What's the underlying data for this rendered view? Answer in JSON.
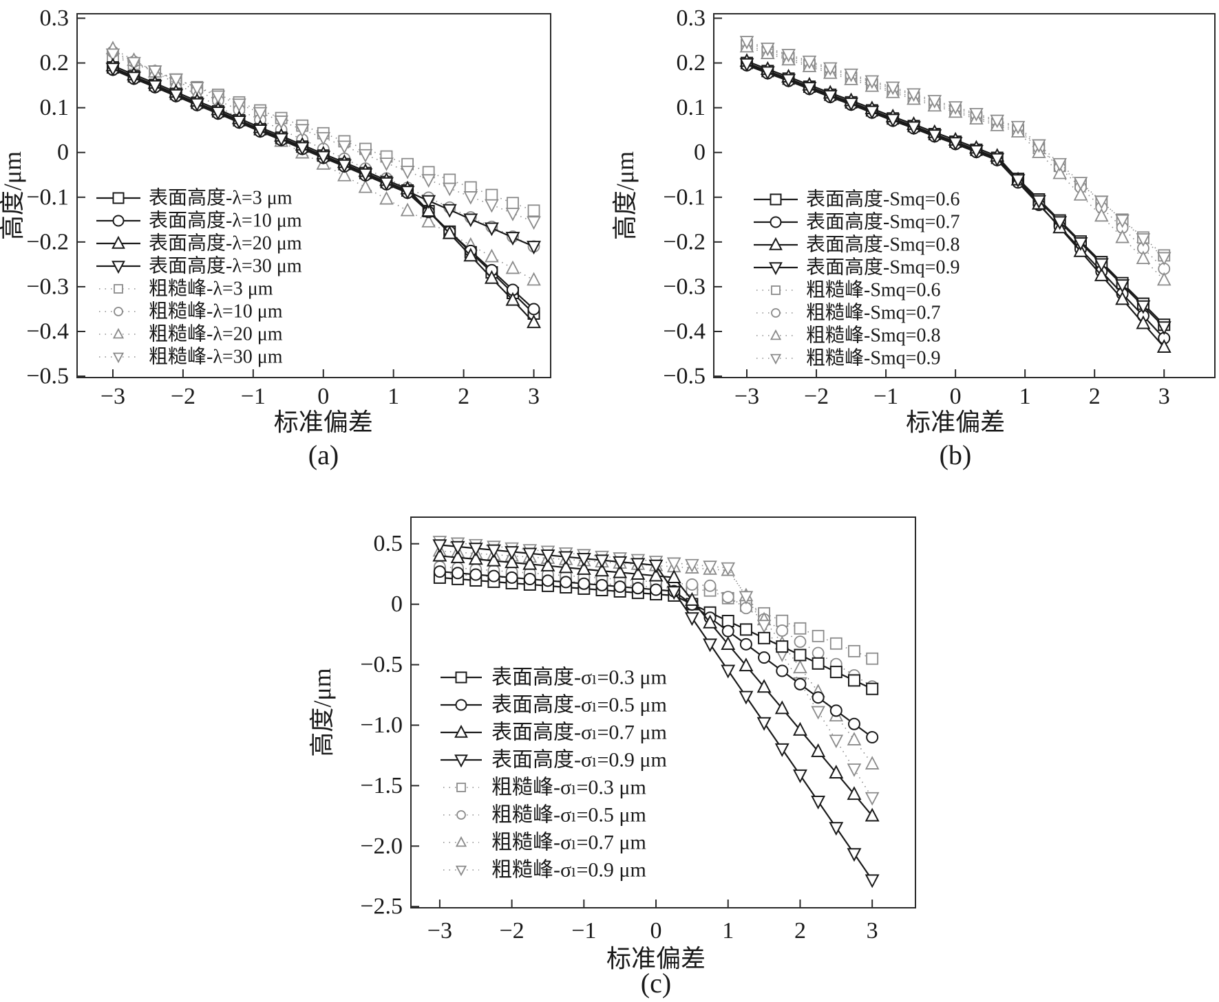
{
  "figure": {
    "background": "#ffffff"
  },
  "chart_data": [
    {
      "id": "a",
      "type": "line",
      "caption": "(a)",
      "xlabel": "标准偏差",
      "ylabel": "高度/μm",
      "xlim": [
        -3,
        3
      ],
      "ylim": [
        -0.5,
        0.3
      ],
      "grid": false,
      "legend_position": "inside-left",
      "x_ticks": [
        -3,
        -2,
        -1,
        0,
        1,
        2,
        3
      ],
      "x_tick_labels": [
        "−3",
        "−2",
        "−1",
        "0",
        "1",
        "2",
        "3"
      ],
      "y_ticks": [
        0.3,
        0.2,
        0.1,
        0,
        -0.1,
        -0.2,
        -0.3,
        -0.4,
        -0.5
      ],
      "y_tick_labels": [
        "0.3",
        "0.2",
        "0.1",
        "0",
        "−0.1",
        "−0.2",
        "−0.3",
        "−0.4",
        "−0.5"
      ],
      "x": [
        -3,
        -2.7,
        -2.4,
        -2.1,
        -1.8,
        -1.5,
        -1.2,
        -0.9,
        -0.6,
        -0.3,
        0,
        0.3,
        0.6,
        0.9,
        1.2,
        1.5,
        1.8,
        2.1,
        2.4,
        2.7,
        3
      ],
      "series": [
        {
          "name": "表面高度-λ=3 μm",
          "group": "表面高度",
          "line": "solid",
          "marker": "square",
          "color": "#1a1a1a",
          "y": [
            0.19,
            0.17,
            0.151,
            0.131,
            0.111,
            0.092,
            0.072,
            0.052,
            0.033,
            0.013,
            -0.007,
            -0.026,
            -0.046,
            -0.066,
            -0.085,
            -0.131,
            -0.177,
            -0.223,
            -0.268,
            -0.314,
            -0.36
          ]
        },
        {
          "name": "表面高度-λ=10 μm",
          "group": "表面高度",
          "line": "solid",
          "marker": "circle",
          "color": "#1a1a1a",
          "y": [
            0.185,
            0.165,
            0.146,
            0.126,
            0.106,
            0.087,
            0.067,
            0.047,
            0.028,
            0.008,
            -0.012,
            -0.031,
            -0.051,
            -0.071,
            -0.09,
            -0.133,
            -0.177,
            -0.22,
            -0.263,
            -0.307,
            -0.35
          ]
        },
        {
          "name": "表面高度-λ=20 μm",
          "group": "表面高度",
          "line": "solid",
          "marker": "triangle-up",
          "color": "#1a1a1a",
          "y": [
            0.194,
            0.174,
            0.155,
            0.135,
            0.115,
            0.096,
            0.076,
            0.056,
            0.037,
            0.017,
            -0.003,
            -0.022,
            -0.042,
            -0.062,
            -0.081,
            -0.131,
            -0.181,
            -0.231,
            -0.281,
            -0.33,
            -0.38
          ]
        },
        {
          "name": "表面高度-λ=30 μm",
          "group": "表面高度",
          "line": "solid",
          "marker": "triangle-down",
          "color": "#1a1a1a",
          "y": [
            0.188,
            0.168,
            0.149,
            0.129,
            0.109,
            0.09,
            0.07,
            0.05,
            0.031,
            0.011,
            -0.009,
            -0.028,
            -0.048,
            -0.068,
            -0.087,
            -0.108,
            -0.128,
            -0.149,
            -0.169,
            -0.19,
            -0.21
          ]
        },
        {
          "name": "粗糙峰-λ=3 μm",
          "group": "粗糙峰",
          "line": "dotted",
          "marker": "square",
          "color": "#8a8a8a",
          "y": [
            0.215,
            0.198,
            0.181,
            0.163,
            0.146,
            0.129,
            0.112,
            0.094,
            0.077,
            0.06,
            0.043,
            0.025,
            0.008,
            -0.009,
            -0.026,
            -0.044,
            -0.061,
            -0.078,
            -0.095,
            -0.113,
            -0.13
          ]
        },
        {
          "name": "粗糙峰-λ=10 μm",
          "group": "粗糙峰",
          "line": "dotted",
          "marker": "circle",
          "color": "#8a8a8a",
          "y": [
            0.225,
            0.203,
            0.182,
            0.16,
            0.138,
            0.116,
            0.095,
            0.073,
            0.051,
            0.029,
            0.008,
            -0.014,
            -0.036,
            -0.058,
            -0.079,
            -0.101,
            -0.123,
            -0.145,
            -0.166,
            -0.188,
            -0.21
          ]
        },
        {
          "name": "粗糙峰-λ=20 μm",
          "group": "粗糙峰",
          "line": "dotted",
          "marker": "triangle-up",
          "color": "#8a8a8a",
          "y": [
            0.232,
            0.206,
            0.18,
            0.154,
            0.129,
            0.103,
            0.077,
            0.051,
            0.025,
            -0.001,
            -0.026,
            -0.052,
            -0.078,
            -0.104,
            -0.13,
            -0.155,
            -0.181,
            -0.207,
            -0.233,
            -0.259,
            -0.285
          ]
        },
        {
          "name": "粗糙峰-λ=30 μm",
          "group": "粗糙峰",
          "line": "dotted",
          "marker": "triangle-down",
          "color": "#8a8a8a",
          "y": [
            0.22,
            0.201,
            0.182,
            0.164,
            0.145,
            0.126,
            0.108,
            0.089,
            0.07,
            0.051,
            0.033,
            0.014,
            -0.005,
            -0.024,
            -0.042,
            -0.061,
            -0.08,
            -0.099,
            -0.117,
            -0.136,
            -0.155
          ]
        }
      ]
    },
    {
      "id": "b",
      "type": "line",
      "caption": "(b)",
      "xlabel": "标准偏差",
      "ylabel": "高度/μm",
      "xlim": [
        -3,
        3
      ],
      "ylim": [
        -0.5,
        0.3
      ],
      "grid": false,
      "legend_position": "inside-left",
      "x_ticks": [
        -3,
        -2,
        -1,
        0,
        1,
        2,
        3
      ],
      "x_tick_labels": [
        "−3",
        "−2",
        "−1",
        "0",
        "1",
        "2",
        "3"
      ],
      "y_ticks": [
        0.3,
        0.2,
        0.1,
        0,
        -0.1,
        -0.2,
        -0.3,
        -0.4,
        -0.5
      ],
      "y_tick_labels": [
        "0.3",
        "0.2",
        "0.1",
        "0",
        "−0.1",
        "−0.2",
        "−0.3",
        "−0.4",
        "−0.5"
      ],
      "x": [
        -3,
        -2.7,
        -2.4,
        -2.1,
        -1.8,
        -1.5,
        -1.2,
        -0.9,
        -0.6,
        -0.3,
        0,
        0.3,
        0.6,
        0.9,
        1.2,
        1.5,
        1.8,
        2.1,
        2.4,
        2.7,
        3
      ],
      "series": [
        {
          "name": "表面高度-Smq=0.6",
          "group": "表面高度",
          "line": "solid",
          "marker": "square",
          "color": "#1a1a1a",
          "y": [
            0.2,
            0.182,
            0.165,
            0.147,
            0.129,
            0.112,
            0.094,
            0.076,
            0.059,
            0.041,
            0.024,
            0.006,
            -0.012,
            -0.059,
            -0.105,
            -0.152,
            -0.199,
            -0.245,
            -0.292,
            -0.338,
            -0.385
          ]
        },
        {
          "name": "表面高度-Smq=0.7",
          "group": "表面高度",
          "line": "solid",
          "marker": "circle",
          "color": "#1a1a1a",
          "y": [
            0.195,
            0.177,
            0.16,
            0.142,
            0.124,
            0.107,
            0.089,
            0.071,
            0.054,
            0.036,
            0.019,
            0.001,
            -0.017,
            -0.067,
            -0.117,
            -0.166,
            -0.216,
            -0.266,
            -0.316,
            -0.365,
            -0.415
          ]
        },
        {
          "name": "表面高度-Smq=0.8",
          "group": "表面高度",
          "line": "solid",
          "marker": "triangle-up",
          "color": "#1a1a1a",
          "y": [
            0.204,
            0.186,
            0.169,
            0.151,
            0.133,
            0.116,
            0.098,
            0.08,
            0.063,
            0.045,
            0.028,
            0.01,
            -0.008,
            -0.061,
            -0.115,
            -0.168,
            -0.221,
            -0.275,
            -0.328,
            -0.382,
            -0.435
          ]
        },
        {
          "name": "表面高度-Smq=0.9",
          "group": "表面高度",
          "line": "solid",
          "marker": "triangle-down",
          "color": "#1a1a1a",
          "y": [
            0.198,
            0.18,
            0.163,
            0.145,
            0.127,
            0.11,
            0.092,
            0.074,
            0.057,
            0.039,
            0.022,
            0.004,
            -0.014,
            -0.061,
            -0.108,
            -0.155,
            -0.202,
            -0.249,
            -0.296,
            -0.343,
            -0.39
          ]
        },
        {
          "name": "粗糙峰-Smq=0.6",
          "group": "粗糙峰",
          "line": "dotted",
          "marker": "square",
          "color": "#8a8a8a",
          "y": [
            0.24,
            0.225,
            0.211,
            0.196,
            0.181,
            0.167,
            0.152,
            0.138,
            0.123,
            0.108,
            0.094,
            0.079,
            0.064,
            0.05,
            0.01,
            -0.03,
            -0.07,
            -0.11,
            -0.15,
            -0.19,
            -0.23
          ]
        },
        {
          "name": "粗糙峰-Smq=0.7",
          "group": "粗糙峰",
          "line": "dotted",
          "marker": "circle",
          "color": "#8a8a8a",
          "y": [
            0.245,
            0.23,
            0.216,
            0.201,
            0.186,
            0.172,
            0.157,
            0.143,
            0.128,
            0.113,
            0.099,
            0.084,
            0.069,
            0.055,
            0.011,
            -0.034,
            -0.078,
            -0.123,
            -0.168,
            -0.214,
            -0.26
          ]
        },
        {
          "name": "粗糙峰-Smq=0.8",
          "group": "粗糙峰",
          "line": "dotted",
          "marker": "triangle-up",
          "color": "#8a8a8a",
          "y": [
            0.236,
            0.221,
            0.207,
            0.192,
            0.177,
            0.163,
            0.148,
            0.134,
            0.119,
            0.104,
            0.09,
            0.075,
            0.06,
            0.046,
            0.0,
            -0.047,
            -0.095,
            -0.142,
            -0.19,
            -0.237,
            -0.285
          ]
        },
        {
          "name": "粗糙峰-Smq=0.9",
          "group": "粗糙峰",
          "line": "dotted",
          "marker": "triangle-down",
          "color": "#8a8a8a",
          "y": [
            0.248,
            0.233,
            0.219,
            0.204,
            0.189,
            0.175,
            0.16,
            0.146,
            0.131,
            0.116,
            0.102,
            0.087,
            0.072,
            0.058,
            0.017,
            -0.025,
            -0.067,
            -0.109,
            -0.151,
            -0.193,
            -0.235
          ]
        }
      ]
    },
    {
      "id": "c",
      "type": "line",
      "caption": "(c)",
      "xlabel": "标准偏差",
      "ylabel": "高度/μm",
      "xlim": [
        -3,
        3
      ],
      "ylim": [
        -2.5,
        0.5
      ],
      "grid": false,
      "legend_position": "inside-left",
      "x_ticks": [
        -3,
        -2,
        -1,
        0,
        1,
        2,
        3
      ],
      "x_tick_labels": [
        "−3",
        "−2",
        "−1",
        "0",
        "1",
        "2",
        "3"
      ],
      "y_ticks": [
        0.5,
        0,
        -0.5,
        -1,
        -1.5,
        -2,
        -2.5
      ],
      "y_tick_labels": [
        "0.5",
        "0",
        "−0.5",
        "−1.0",
        "−1.5",
        "−2.0",
        "−2.5"
      ],
      "x": [
        -3,
        -2.75,
        -2.5,
        -2.25,
        -2,
        -1.75,
        -1.5,
        -1.25,
        -1,
        -0.75,
        -0.5,
        -0.25,
        0,
        0.25,
        0.5,
        0.75,
        1,
        1.25,
        1.5,
        1.75,
        2,
        2.25,
        2.5,
        2.75,
        3
      ],
      "series": [
        {
          "name": "表面高度-σₗ=0.3 μm",
          "group": "表面高度",
          "line": "solid",
          "marker": "square",
          "color": "#1a1a1a",
          "y": [
            0.22,
            0.209,
            0.197,
            0.186,
            0.174,
            0.163,
            0.152,
            0.14,
            0.129,
            0.117,
            0.106,
            0.094,
            0.083,
            0.072,
            0.001,
            -0.069,
            -0.139,
            -0.209,
            -0.28,
            -0.35,
            -0.42,
            -0.49,
            -0.56,
            -0.63,
            -0.7
          ]
        },
        {
          "name": "表面高度-σₗ=0.5 μm",
          "group": "表面高度",
          "line": "solid",
          "marker": "circle",
          "color": "#1a1a1a",
          "y": [
            0.27,
            0.258,
            0.245,
            0.233,
            0.22,
            0.208,
            0.195,
            0.183,
            0.17,
            0.158,
            0.145,
            0.133,
            0.12,
            0.108,
            -0.002,
            -0.112,
            -0.222,
            -0.331,
            -0.441,
            -0.551,
            -0.661,
            -0.771,
            -0.88,
            -0.99,
            -1.1
          ]
        },
        {
          "name": "表面高度-σₗ=0.7 μm",
          "group": "表面高度",
          "line": "solid",
          "marker": "triangle-up",
          "color": "#1a1a1a",
          "y": [
            0.4,
            0.386,
            0.373,
            0.359,
            0.345,
            0.331,
            0.318,
            0.304,
            0.29,
            0.276,
            0.263,
            0.249,
            0.235,
            0.221,
            0.034,
            -0.153,
            -0.331,
            -0.508,
            -0.685,
            -0.862,
            -1.04,
            -1.217,
            -1.394,
            -1.571,
            -1.75
          ]
        },
        {
          "name": "表面高度-σₗ=0.9 μm",
          "group": "表面高度",
          "line": "solid",
          "marker": "triangle-down",
          "color": "#1a1a1a",
          "y": [
            0.49,
            0.476,
            0.462,
            0.448,
            0.434,
            0.42,
            0.406,
            0.392,
            0.378,
            0.364,
            0.35,
            0.336,
            0.322,
            0.103,
            -0.113,
            -0.33,
            -0.547,
            -0.763,
            -0.98,
            -1.197,
            -1.413,
            -1.63,
            -1.847,
            -2.063,
            -2.28
          ]
        },
        {
          "name": "粗糙峰-σₗ=0.3 μm",
          "group": "粗糙峰",
          "line": "dotted",
          "marker": "square",
          "color": "#8a8a8a",
          "y": [
            0.255,
            0.246,
            0.236,
            0.227,
            0.217,
            0.208,
            0.198,
            0.189,
            0.179,
            0.17,
            0.16,
            0.151,
            0.141,
            0.132,
            0.122,
            0.113,
            0.05,
            -0.012,
            -0.075,
            -0.137,
            -0.2,
            -0.263,
            -0.325,
            -0.388,
            -0.45
          ]
        },
        {
          "name": "粗糙峰-σₗ=0.5 μm",
          "group": "粗糙峰",
          "line": "dotted",
          "marker": "circle",
          "color": "#8a8a8a",
          "y": [
            0.31,
            0.3,
            0.289,
            0.279,
            0.268,
            0.258,
            0.247,
            0.237,
            0.226,
            0.216,
            0.205,
            0.195,
            0.184,
            0.174,
            0.163,
            0.153,
            0.06,
            -0.032,
            -0.125,
            -0.218,
            -0.31,
            -0.403,
            -0.495,
            -0.588,
            -0.68
          ]
        },
        {
          "name": "粗糙峰-σₗ=0.7 μm",
          "group": "粗糙峰",
          "line": "dotted",
          "marker": "triangle-up",
          "color": "#8a8a8a",
          "y": [
            0.44,
            0.43,
            0.42,
            0.41,
            0.4,
            0.39,
            0.38,
            0.37,
            0.36,
            0.35,
            0.34,
            0.33,
            0.32,
            0.31,
            0.3,
            0.29,
            0.28,
            0.071,
            -0.128,
            -0.326,
            -0.525,
            -0.724,
            -0.923,
            -1.121,
            -1.32
          ]
        },
        {
          "name": "粗糙峰-σₗ=0.9 μm",
          "group": "粗糙峰",
          "line": "dotted",
          "marker": "triangle-down",
          "color": "#8a8a8a",
          "y": [
            0.52,
            0.506,
            0.493,
            0.479,
            0.465,
            0.451,
            0.438,
            0.424,
            0.41,
            0.396,
            0.383,
            0.369,
            0.355,
            0.341,
            0.328,
            0.314,
            0.3,
            0.063,
            -0.175,
            -0.413,
            -0.65,
            -0.888,
            -1.125,
            -1.363,
            -1.6
          ]
        }
      ]
    }
  ]
}
